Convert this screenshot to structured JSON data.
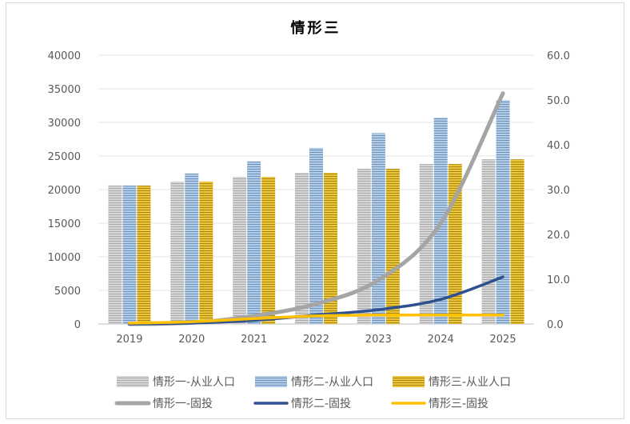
{
  "chart_data": {
    "type": "bar",
    "title": "情形三",
    "categories": [
      "2019",
      "2020",
      "2021",
      "2022",
      "2023",
      "2024",
      "2025"
    ],
    "y_left": {
      "range": [
        0,
        40000
      ],
      "ticks": [
        "0",
        "5000",
        "10000",
        "15000",
        "20000",
        "25000",
        "30000",
        "35000",
        "40000"
      ]
    },
    "y_right": {
      "range": [
        0,
        60
      ],
      "ticks": [
        "0.0",
        "10.0",
        "20.0",
        "30.0",
        "40.0",
        "50.0",
        "60.0"
      ]
    },
    "grid": true,
    "legend_position": "bottom",
    "bar_series": [
      {
        "name": "情形一-从业人口",
        "axis": "left",
        "color": "#c8c8c8",
        "values": [
          20600,
          21200,
          21900,
          22500,
          23100,
          23800,
          24500
        ]
      },
      {
        "name": "情形二-从业人口",
        "axis": "left",
        "color": "#9dbbdc",
        "values": [
          20600,
          22400,
          24200,
          26200,
          28400,
          30700,
          33300
        ]
      },
      {
        "name": "情形三-从业人口",
        "axis": "left",
        "color": "#d8b530",
        "values": [
          20600,
          21200,
          21900,
          22500,
          23100,
          23800,
          24500
        ]
      }
    ],
    "line_series": [
      {
        "name": "情形一-固投",
        "axis": "right",
        "color": "#a5a5a5",
        "values": [
          0,
          0.3,
          1.8,
          4.5,
          9.8,
          22.5,
          51.5
        ]
      },
      {
        "name": "情形二-固投",
        "axis": "right",
        "color": "#2f528f",
        "values": [
          0,
          0.2,
          0.8,
          2.0,
          3.2,
          5.5,
          10.5
        ]
      },
      {
        "name": "情形三-固投",
        "axis": "right",
        "color": "#ffc000",
        "values": [
          0.2,
          0.5,
          1.2,
          1.8,
          2.0,
          2.0,
          2.0
        ]
      }
    ]
  }
}
